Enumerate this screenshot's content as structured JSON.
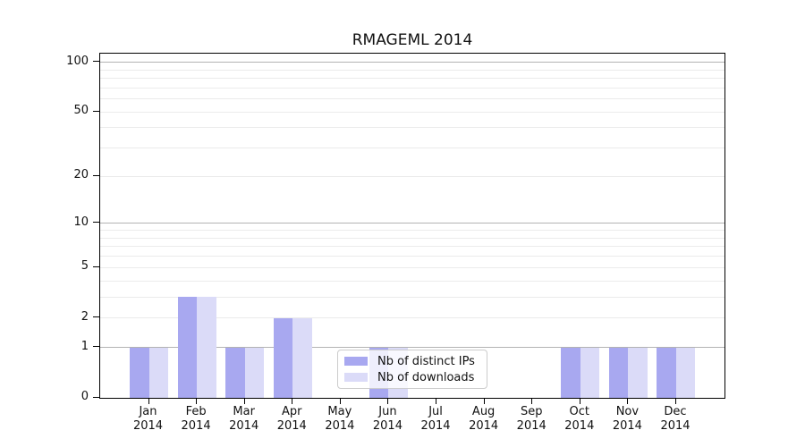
{
  "chart_data": {
    "type": "bar",
    "title": "RMAGEML 2014",
    "categories": [
      "Jan",
      "Feb",
      "Mar",
      "Apr",
      "May",
      "Jun",
      "Jul",
      "Aug",
      "Sep",
      "Oct",
      "Nov",
      "Dec"
    ],
    "year_label": "2014",
    "series": [
      {
        "key": "distinct-ips",
        "name": "Nb of distinct IPs",
        "color": "#a8a8f0",
        "values": [
          1,
          3,
          1,
          2,
          0,
          1,
          0,
          0,
          0,
          1,
          1,
          1
        ]
      },
      {
        "key": "downloads",
        "name": "Nb of downloads",
        "color": "#dbdbf8",
        "values": [
          1,
          3,
          1,
          2,
          0,
          1,
          0,
          0,
          0,
          1,
          1,
          1
        ]
      }
    ],
    "xlabel": "",
    "ylabel": "",
    "yscale": "log1p",
    "ylim": [
      0,
      113
    ],
    "y_ticks": [
      0,
      1,
      2,
      5,
      10,
      20,
      50,
      100
    ],
    "grid": {
      "major": [
        1,
        10,
        100
      ],
      "minor": [
        2,
        3,
        4,
        5,
        6,
        7,
        8,
        9,
        20,
        30,
        40,
        50,
        60,
        70,
        80,
        90
      ]
    },
    "legend_position": "lower center",
    "colors": {
      "grid_major": "#b2b2b2",
      "grid_minor": "#ebebeb",
      "axis": "#000000",
      "text": "#111111",
      "background": "#ffffff"
    }
  }
}
